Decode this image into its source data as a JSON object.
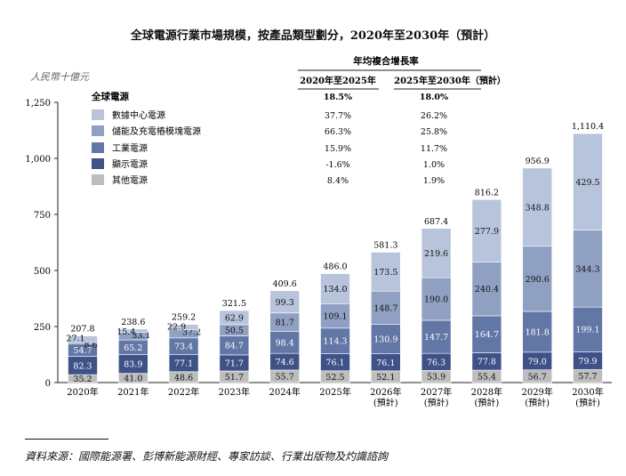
{
  "title": "全球電源行業市場規模，按產品類型劃分，2020年至2030年（預計）",
  "unit_label": "人民幣十億元",
  "source": "資料來源：國際能源署、彭博新能源財經、專家訪談、行業出版物及灼識諮詢",
  "cagr_table": {
    "header": "年均複合增長率",
    "columns": [
      "2020年至2025年",
      "2025年至2030年（預計）"
    ],
    "rows": [
      {
        "label": "全球電源",
        "values": [
          "18.5%",
          "18.0%"
        ],
        "bold": true
      },
      {
        "label": "數據中心電源",
        "values": [
          "37.7%",
          "26.2%"
        ]
      },
      {
        "label": "儲能及充電樁模塊電源",
        "values": [
          "66.3%",
          "25.8%"
        ]
      },
      {
        "label": "工業電源",
        "values": [
          "15.9%",
          "11.7%"
        ]
      },
      {
        "label": "顯示電源",
        "values": [
          "-1.6%",
          "1.0%"
        ]
      },
      {
        "label": "其他電源",
        "values": [
          "8.4%",
          "1.9%"
        ]
      }
    ]
  },
  "chart_data": {
    "type": "bar",
    "stacked": true,
    "categories": [
      "2020年",
      "2021年",
      "2022年",
      "2023年",
      "2024年",
      "2025年",
      "2026年",
      "2027年",
      "2028年",
      "2029年",
      "2030年"
    ],
    "category_notes": [
      "",
      "",
      "",
      "",
      "",
      "",
      "(預計)",
      "(預計)",
      "(預計)",
      "(預計)",
      "(預計)"
    ],
    "series": [
      {
        "name": "其他電源",
        "color": "#bdbdbd",
        "values": [
          35.2,
          41.0,
          48.6,
          51.7,
          55.7,
          52.5,
          52.1,
          53.9,
          55.4,
          56.7,
          57.7
        ]
      },
      {
        "name": "顯示電源",
        "color": "#3e5288",
        "values": [
          82.3,
          83.9,
          77.1,
          71.7,
          74.6,
          76.1,
          76.1,
          76.3,
          77.8,
          79.0,
          79.9
        ]
      },
      {
        "name": "工業電源",
        "color": "#6277a6",
        "values": [
          54.7,
          65.2,
          73.4,
          84.7,
          98.4,
          114.3,
          130.9,
          147.7,
          164.7,
          181.8,
          199.1
        ]
      },
      {
        "name": "儲能及充電樁模塊電源",
        "color": "#8fa0c2",
        "values": [
          8.6,
          33.1,
          37.2,
          50.5,
          81.7,
          109.1,
          148.7,
          190.0,
          240.4,
          290.6,
          344.3
        ]
      },
      {
        "name": "數據中心電源",
        "color": "#b7c4dc",
        "values": [
          27.1,
          15.4,
          22.9,
          62.9,
          99.3,
          134.0,
          173.5,
          219.6,
          277.9,
          348.8,
          429.5
        ]
      }
    ],
    "totals": [
      "207.8",
      "238.6",
      "259.2",
      "321.5",
      "409.6",
      "486.0",
      "581.3",
      "687.4",
      "816.2",
      "956.9",
      "1,110.4"
    ],
    "segment_labels": [
      [
        "35.2",
        "82.3",
        "54.7",
        "8.6",
        "27.1"
      ],
      [
        "41.0",
        "83.9",
        "65.2",
        "33.1",
        "15.4"
      ],
      [
        "48.6",
        "77.1",
        "73.4",
        "37.2",
        "22.9"
      ],
      [
        "51.7",
        "71.7",
        "84.7",
        "50.5",
        "62.9"
      ],
      [
        "55.7",
        "74.6",
        "98.4",
        "81.7",
        "99.3"
      ],
      [
        "52.5",
        "76.1",
        "114.3",
        "109.1",
        "134.0"
      ],
      [
        "52.1",
        "76.1",
        "130.9",
        "148.7",
        "173.5"
      ],
      [
        "53.9",
        "76.3",
        "147.7",
        "190.0",
        "219.6"
      ],
      [
        "55.4",
        "77.8",
        "164.7",
        "240.4",
        "277.9"
      ],
      [
        "56.7",
        "79.0",
        "181.8",
        "290.6",
        "348.8"
      ],
      [
        "57.7",
        "79.9",
        "199.1",
        "344.3",
        "429.5"
      ]
    ],
    "ylim": [
      0,
      1250
    ],
    "yticks": [
      "0",
      "250",
      "500",
      "750",
      "1,000",
      "1,250"
    ],
    "ytick_values": [
      0,
      250,
      500,
      750,
      1000,
      1250
    ],
    "legend_title": "全球電源",
    "legend_placement": "top-left",
    "grid": false
  }
}
